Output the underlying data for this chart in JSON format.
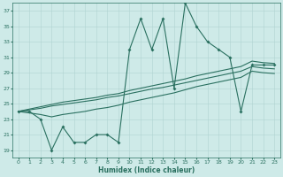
{
  "xlabel": "Humidex (Indice chaleur)",
  "x_values": [
    0,
    1,
    2,
    3,
    4,
    5,
    6,
    7,
    8,
    9,
    10,
    11,
    12,
    13,
    14,
    15,
    16,
    17,
    18,
    19,
    20,
    21,
    22,
    23
  ],
  "main_y": [
    24,
    24,
    23,
    19,
    22,
    20,
    20,
    21,
    21,
    20,
    32,
    36,
    32,
    36,
    27,
    38,
    35,
    33,
    32,
    31,
    24,
    30,
    30,
    30
  ],
  "trend_top_y": [
    24.0,
    24.3,
    24.6,
    24.9,
    25.2,
    25.4,
    25.6,
    25.8,
    26.1,
    26.3,
    26.7,
    27.0,
    27.3,
    27.6,
    27.9,
    28.2,
    28.6,
    28.9,
    29.2,
    29.5,
    29.8,
    30.5,
    30.3,
    30.2
  ],
  "trend_mid_y": [
    24.0,
    24.2,
    24.4,
    24.7,
    24.9,
    25.1,
    25.3,
    25.5,
    25.8,
    26.0,
    26.3,
    26.6,
    26.9,
    27.1,
    27.4,
    27.7,
    28.0,
    28.3,
    28.6,
    28.9,
    29.2,
    29.8,
    29.6,
    29.5
  ],
  "trend_bot_y": [
    24.0,
    23.8,
    23.6,
    23.3,
    23.6,
    23.8,
    24.0,
    24.3,
    24.5,
    24.8,
    25.2,
    25.5,
    25.8,
    26.1,
    26.4,
    26.8,
    27.2,
    27.5,
    27.8,
    28.1,
    28.4,
    29.2,
    29.0,
    28.9
  ],
  "ylim": [
    18,
    38
  ],
  "xlim": [
    -0.5,
    23.5
  ],
  "yticks": [
    19,
    21,
    23,
    25,
    27,
    29,
    31,
    33,
    35,
    37
  ],
  "xticks": [
    0,
    1,
    2,
    3,
    4,
    5,
    6,
    7,
    8,
    9,
    10,
    11,
    12,
    13,
    14,
    15,
    16,
    17,
    18,
    19,
    20,
    21,
    22,
    23
  ],
  "line_color": "#2a7060",
  "bg_color": "#ceeae8",
  "grid_color": "#b0d4d2",
  "spine_color": "#2a7060"
}
